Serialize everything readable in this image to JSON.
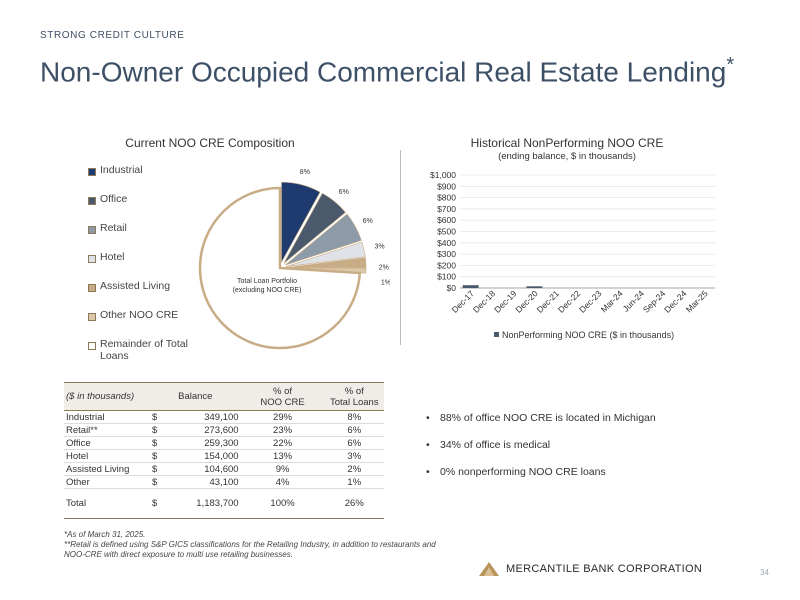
{
  "header": {
    "kicker": "STRONG CREDIT CULTURE",
    "title": "Non-Owner Occupied Commercial Real Estate Lending",
    "title_mark": "*"
  },
  "pie": {
    "title": "Current NOO CRE Composition",
    "center_label_1": "Total Loan Portfolio",
    "center_label_2": "(excluding NOO CRE)",
    "legend": [
      {
        "label": "Industrial",
        "color": "#1f3a6e"
      },
      {
        "label": "Office",
        "color": "#4a5a6c"
      },
      {
        "label": "Retail",
        "color": "#8d9aa8"
      },
      {
        "label": "Hotel",
        "color": "#dfe3e8"
      },
      {
        "label": "Assisted Living",
        "color": "#c8ac86"
      },
      {
        "label": "Other NOO CRE",
        "color": "#ddc9a7"
      },
      {
        "label": "Remainder of Total Loans",
        "color": "#ffffff"
      }
    ]
  },
  "chart_data": [
    {
      "type": "pie",
      "title": "Current NOO CRE Composition",
      "labels": [
        "Industrial",
        "Office",
        "Retail",
        "Hotel",
        "Assisted Living",
        "Other NOO CRE",
        "Remainder of Total Loans"
      ],
      "values": [
        8,
        6,
        6,
        3,
        2,
        1,
        74
      ],
      "data_labels": [
        "8%",
        "6%",
        "6%",
        "3%",
        "2%",
        "1%",
        ""
      ],
      "colors": [
        "#1f3a6e",
        "#4a5a6c",
        "#8d9aa8",
        "#dfe3e8",
        "#c8ac86",
        "#ddc9a7",
        "#ffffff"
      ]
    },
    {
      "type": "bar",
      "title": "Historical NonPerforming NOO CRE",
      "subtitle": "(ending balance, $ in thousands)",
      "categories": [
        "Dec-17",
        "Dec-18",
        "Dec-19",
        "Dec-20",
        "Dec-21",
        "Dec-22",
        "Dec-23",
        "Mar-24",
        "Jun-24",
        "Sep-24",
        "Dec-24",
        "Mar-25"
      ],
      "series": [
        {
          "name": "NonPerforming NOO CRE ($ in thousands)",
          "values": [
            25,
            0,
            0,
            15,
            0,
            0,
            0,
            0,
            0,
            0,
            0,
            0
          ],
          "color": "#4a5a6c"
        }
      ],
      "ylim": [
        0,
        1000
      ],
      "yticks": [
        0,
        100,
        200,
        300,
        400,
        500,
        600,
        700,
        800,
        900,
        1000
      ],
      "ytick_labels": [
        "$0",
        "$100",
        "$200",
        "$300",
        "$400",
        "$500",
        "$600",
        "$700",
        "$800",
        "$900",
        "$1,000"
      ],
      "legend_label": "NonPerforming NOO CRE ($ in thousands)"
    }
  ],
  "table": {
    "headers": [
      "($ in thousands)",
      "Balance",
      "% of",
      "NOO CRE",
      "% of",
      "Total Loans"
    ],
    "rows": [
      {
        "label": "Industrial",
        "cur": "$",
        "balance": "349,100",
        "pct_noo": "29%",
        "pct_total": "8%"
      },
      {
        "label": "Retail**",
        "cur": "$",
        "balance": "273,600",
        "pct_noo": "23%",
        "pct_total": "6%"
      },
      {
        "label": "Office",
        "cur": "$",
        "balance": "259,300",
        "pct_noo": "22%",
        "pct_total": "6%"
      },
      {
        "label": "Hotel",
        "cur": "$",
        "balance": "154,000",
        "pct_noo": "13%",
        "pct_total": "3%"
      },
      {
        "label": "Assisted Living",
        "cur": "$",
        "balance": "104,600",
        "pct_noo": "9%",
        "pct_total": "2%"
      },
      {
        "label": "Other",
        "cur": "$",
        "balance": "43,100",
        "pct_noo": "4%",
        "pct_total": "1%"
      }
    ],
    "total": {
      "label": "Total",
      "cur": "$",
      "balance": "1,183,700",
      "pct_noo": "100%",
      "pct_total": "26%"
    }
  },
  "bullets": [
    "88% of office NOO CRE is located in Michigan",
    "34% of office is medical",
    "0% nonperforming NOO CRE loans"
  ],
  "footnotes": [
    "*As of March 31, 2025.",
    "**Retail is defined using S&P GICS classifications for the Retailing Industry, in addition to restaurants and",
    "NOO-CRE with direct exposure to multi use retailing businesses."
  ],
  "footer": {
    "company": "MERCANTILE BANK CORPORATION",
    "page": "34",
    "logo_color": "#b8935a"
  }
}
